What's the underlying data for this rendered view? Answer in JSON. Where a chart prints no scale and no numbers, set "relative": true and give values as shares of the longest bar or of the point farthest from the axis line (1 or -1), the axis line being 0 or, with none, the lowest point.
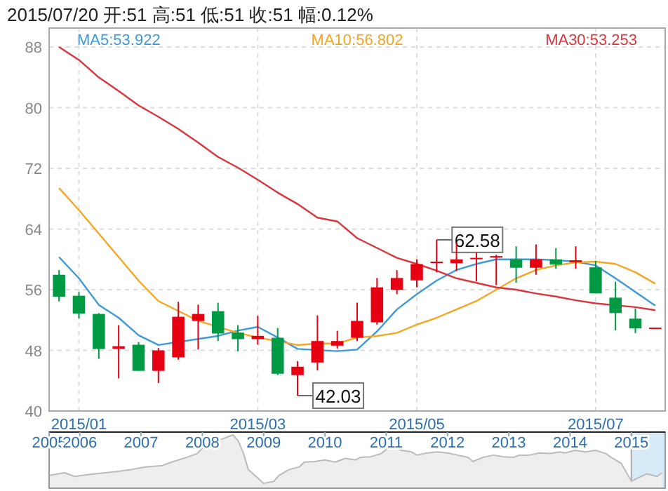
{
  "chart_data": [
    {
      "type": "candlestick",
      "title": "2015/07/20 开:51 高:51 低:51 收:51 幅:0.12%",
      "categories": [
        null,
        "2015/01",
        null,
        null,
        null,
        null,
        null,
        null,
        null,
        null,
        "2015/03",
        null,
        null,
        null,
        null,
        null,
        null,
        null,
        "2015/05",
        null,
        null,
        null,
        null,
        null,
        null,
        null,
        null,
        "2015/07",
        null,
        null,
        null
      ],
      "ohlc": [
        [
          57.97,
          58.58,
          54.46,
          55.08
        ],
        [
          55.2,
          55.69,
          52.18,
          52.86
        ],
        [
          52.8,
          52.92,
          46.89,
          48.18
        ],
        [
          48.2,
          51.32,
          44.31,
          48.55
        ],
        [
          48.74,
          49.1,
          45.3,
          45.3
        ],
        [
          45.3,
          48.31,
          43.69,
          48.0
        ],
        [
          47.08,
          54.4,
          46.77,
          52.43
        ],
        [
          51.88,
          54.03,
          48.12,
          52.8
        ],
        [
          53.17,
          54.28,
          49.23,
          50.22
        ],
        [
          50.34,
          51.32,
          47.88,
          49.48
        ],
        [
          49.48,
          52.55,
          48.74,
          49.91
        ],
        [
          49.66,
          50.95,
          44.74,
          44.92
        ],
        [
          44.74,
          46.58,
          42.03,
          45.85
        ],
        [
          46.4,
          52.62,
          45.35,
          49.23
        ],
        [
          48.62,
          50.58,
          48.25,
          49.23
        ],
        [
          49.66,
          54.28,
          49.23,
          51.88
        ],
        [
          51.7,
          57.54,
          51.4,
          56.31
        ],
        [
          56.0,
          58.58,
          55.4,
          57.54
        ],
        [
          57.23,
          60.0,
          56.31,
          59.38
        ],
        [
          59.6,
          62.58,
          58.28,
          59.7
        ],
        [
          59.5,
          62.15,
          58.46,
          60.0
        ],
        [
          60.1,
          60.92,
          57.11,
          60.2
        ],
        [
          60.25,
          60.6,
          56.6,
          60.43
        ],
        [
          60.0,
          61.72,
          56.92,
          58.89
        ],
        [
          58.89,
          61.97,
          57.97,
          60.0
        ],
        [
          60.0,
          61.48,
          58.77,
          59.32
        ],
        [
          59.63,
          61.72,
          58.77,
          59.88
        ],
        [
          58.95,
          59.8,
          55.51,
          55.51
        ],
        [
          54.95,
          57.05,
          50.65,
          52.92
        ],
        [
          52.18,
          53.54,
          50.28,
          50.89
        ],
        [
          51,
          51,
          51,
          51
        ]
      ],
      "colors": [
        "#009944",
        "#009944",
        "#009944",
        "#e60012",
        "#009944",
        "#e60012",
        "#e60012",
        "#e60012",
        "#009944",
        "#009944",
        "#e60012",
        "#009944",
        "#e60012",
        "#e60012",
        "#e60012",
        "#e60012",
        "#e60012",
        "#e60012",
        "#e60012",
        "#e60012",
        "#e60012",
        "#e60012",
        "#e60012",
        "#009944",
        "#e60012",
        "#009944",
        "#e60012",
        "#009944",
        "#009944",
        "#009944",
        "#e60012"
      ],
      "series": [
        {
          "type": "line",
          "name": "MA5:53.922",
          "color": "#3e9ad8",
          "values": [
            60.3,
            57.5,
            54.0,
            52.3,
            50.0,
            48.7,
            null,
            49.5,
            49.9,
            50.6,
            51.1,
            49.7,
            48.2,
            null,
            47.9,
            48.1,
            50.5,
            53.4,
            55.4,
            57.2,
            58.6,
            59.4,
            60.0,
            60.0,
            60.0,
            59.9,
            59.7,
            59.2,
            57.5,
            55.7,
            53.9
          ]
        },
        {
          "type": "line",
          "name": "MA10:56.802",
          "color": "#f5a623",
          "values": [
            69.4,
            66.5,
            63.4,
            60.3,
            57.2,
            54.5,
            53.2,
            51.9,
            null,
            50.3,
            49.7,
            null,
            48.7,
            48.9,
            48.9,
            49.7,
            49.9,
            50.3,
            51.4,
            52.3,
            53.4,
            54.5,
            56.0,
            57.5,
            58.6,
            59.2,
            59.6,
            59.7,
            59.4,
            58.3,
            56.8
          ]
        },
        {
          "type": "line",
          "name": "MA30:53.253",
          "color": "#d9363e",
          "values": [
            88.0,
            86.3,
            84.0,
            82.2,
            80.3,
            78.8,
            77.2,
            75.4,
            73.5,
            72.1,
            70.5,
            68.8,
            67.3,
            65.5,
            65.0,
            62.8,
            61.5,
            60.2,
            59.4,
            58.5,
            57.5,
            56.9,
            56.3,
            56.0,
            55.5,
            55.1,
            54.6,
            54.2,
            null,
            53.7,
            53.3
          ]
        }
      ],
      "ylim": [
        40,
        90.5
      ],
      "yticks": [
        40,
        48,
        56,
        64,
        72,
        80,
        88
      ],
      "grid": true,
      "annotations": [
        {
          "text": "62.58",
          "y": 62.58
        },
        {
          "text": "42.03",
          "y": 42.03
        }
      ]
    },
    {
      "type": "area",
      "relative": true,
      "color": "#bbbbbb",
      "x": [
        "2005-07",
        "2005-10",
        "2005-12",
        "2006-03",
        "2006-06",
        "2006-08",
        "2006-11",
        "2007-02",
        "2007-05",
        "2007-07",
        "2007-10",
        "2007-12",
        "2008-01",
        "2008-03",
        "2008-05",
        "2008-07",
        "2008-08",
        "2008-09",
        "2008-10",
        "2008-12",
        "2009-01",
        "2009-03",
        "2009-04",
        "2009-06",
        "2009-08",
        "2009-09",
        "2009-11",
        "2010-01",
        "2010-03",
        "2010-05",
        "2010-07",
        "2010-08",
        "2010-10",
        "2010-12",
        "2011-02",
        "2011-04",
        "2011-06",
        "2011-07",
        "2011-09",
        "2011-11",
        "2012-01",
        "2012-03",
        "2012-05",
        "2012-06",
        "2012-08",
        "2012-10",
        "2012-12",
        "2013-02",
        "2013-03",
        "2013-05",
        "2013-07",
        "2013-09",
        "2013-11",
        "2013-12",
        "2014-02",
        "2014-04",
        "2014-06",
        "2014-08",
        "2014-09",
        "2014-11",
        "2015-01",
        "2015-02",
        "2015-04",
        "2015-06",
        "2015-07"
      ],
      "values": [
        0.24,
        0.29,
        0.22,
        0.26,
        0.29,
        0.31,
        0.35,
        0.4,
        0.42,
        0.49,
        0.58,
        0.65,
        0.75,
        0.86,
        0.93,
        1,
        0.89,
        0.67,
        0.35,
        0.18,
        0.09,
        0.13,
        0.24,
        0.35,
        0.4,
        0.49,
        0.5,
        0.53,
        0.49,
        0.56,
        0.53,
        0.58,
        0.59,
        0.65,
        0.8,
        0.71,
        0.68,
        0.62,
        0.66,
        0.68,
        0.66,
        0.62,
        0.58,
        0.5,
        0.58,
        0.62,
        0.59,
        0.58,
        0.62,
        0.62,
        0.66,
        0.65,
        0.68,
        0.66,
        0.71,
        0.68,
        0.71,
        0.65,
        0.58,
        0.47,
        0.13,
        0.18,
        0.27,
        0.22,
        0.29
      ],
      "xlim": [
        "2005-07",
        "2015-07-20"
      ],
      "xticks": [
        {
          "value": "2005-07",
          "label": "2005"
        },
        "2006",
        "2007",
        "2008",
        "2009",
        "2010",
        "2011",
        "2012",
        "2013",
        "2014",
        "2015"
      ],
      "bands": [
        {
          "axis": "x",
          "from": "2015-01",
          "to": "2015-07-20",
          "color": "#d6eaf8"
        }
      ]
    }
  ]
}
